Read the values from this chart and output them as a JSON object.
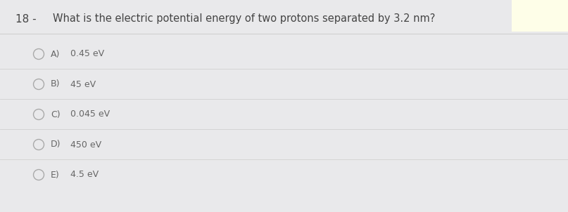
{
  "question_number": "18 -",
  "question_text": "What is the electric potential energy of two protons separated by 3.2 nm?",
  "options": [
    {
      "label": "A)",
      "text": "0.45 eV"
    },
    {
      "label": "B)",
      "text": "45 eV"
    },
    {
      "label": "C)",
      "text": "0.045 eV"
    },
    {
      "label": "D)",
      "text": "450 eV"
    },
    {
      "label": "E)",
      "text": "4.5 eV"
    }
  ],
  "bg_color": "#e9e9eb",
  "highlight_color": "#fefee8",
  "text_color": "#666666",
  "question_color": "#444444",
  "line_color": "#d0d0d0",
  "circle_color": "#aaaaaa",
  "font_size_question": 10.5,
  "font_size_options": 9.0,
  "font_size_number": 11
}
